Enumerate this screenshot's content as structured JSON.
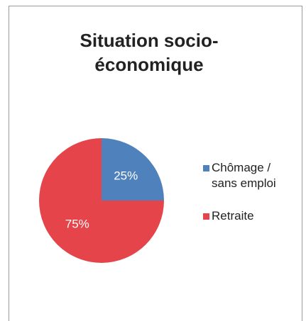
{
  "chart_data": {
    "type": "pie",
    "title": "Situation socio-économique",
    "categories": [
      "Chômage / sans emploi",
      "Retraite"
    ],
    "values": [
      25,
      75
    ],
    "value_labels": [
      "25%",
      "75%"
    ],
    "colors": [
      "#4f81bd",
      "#e5444b"
    ],
    "legend": "right"
  }
}
